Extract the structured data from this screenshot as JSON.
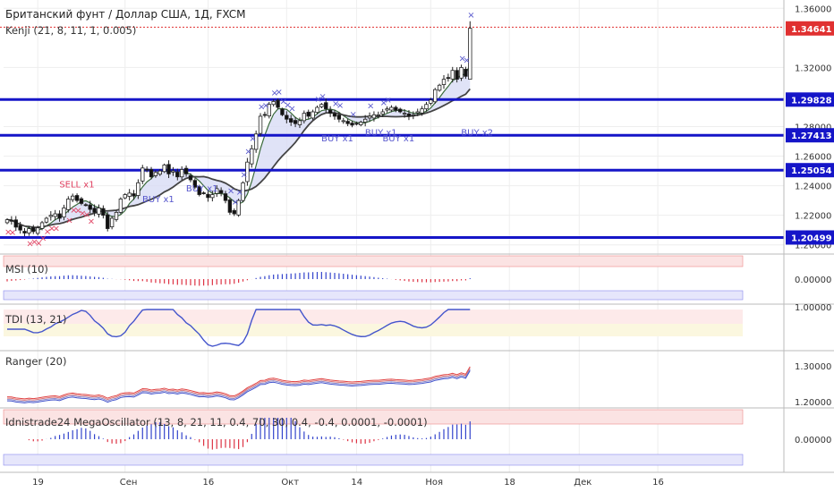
{
  "chart_data": {
    "type": "candlestick",
    "title": "Британский фунт / Доллар США, 1Д, FXCM",
    "indicator": "Kenji (21, 8, 11, 1, 0.005)",
    "colors": {
      "level": "#1515c8",
      "price_line": "#e03030",
      "sell": "#e04060",
      "buy": "#5555cc",
      "up": "#ffffff",
      "down": "#111111",
      "grid": "#eeeeee"
    },
    "x_tick_labels": [
      "19",
      "Сен",
      "16",
      "Окт",
      "14",
      "Ноя",
      "18",
      "Дек",
      "16"
    ],
    "x_tick_bars": [
      7,
      27,
      46,
      64,
      80,
      97,
      115,
      131,
      149
    ],
    "y_ticks": [
      "1.36000",
      "1.32000",
      "1.28000",
      "1.26000",
      "1.24000",
      "1.22000",
      "1.20000"
    ],
    "y_tick_values": [
      1.36,
      1.32,
      1.28,
      1.26,
      1.24,
      1.22,
      1.2
    ],
    "ylim": [
      1.195,
      1.362
    ],
    "levels": [
      {
        "value": "1.29828",
        "num": 1.29828
      },
      {
        "value": "1.27413",
        "num": 1.27413
      },
      {
        "value": "1.25054",
        "num": 1.25054
      },
      {
        "value": "1.20499",
        "num": 1.20499
      }
    ],
    "top_label": {
      "value": "1.34725",
      "num": 1.34725
    },
    "price_badge": {
      "value": "1.34641",
      "num": 1.34641
    },
    "closes": [
      1.217,
      1.2165,
      1.212,
      1.21,
      1.208,
      1.211,
      1.209,
      1.2115,
      1.215,
      1.218,
      1.22,
      1.221,
      1.218,
      1.225,
      1.231,
      1.233,
      1.23,
      1.228,
      1.227,
      1.224,
      1.222,
      1.225,
      1.22,
      1.211,
      1.218,
      1.222,
      1.231,
      1.234,
      1.235,
      1.233,
      1.242,
      1.252,
      1.251,
      1.246,
      1.249,
      1.25,
      1.254,
      1.248,
      1.25,
      1.246,
      1.251,
      1.248,
      1.244,
      1.239,
      1.234,
      1.235,
      1.232,
      1.234,
      1.238,
      1.235,
      1.23,
      1.222,
      1.221,
      1.23,
      1.242,
      1.256,
      1.265,
      1.275,
      1.287,
      1.288,
      1.295,
      1.297,
      1.293,
      1.288,
      1.285,
      1.283,
      1.282,
      1.284,
      1.289,
      1.287,
      1.29,
      1.293,
      1.295,
      1.292,
      1.289,
      1.287,
      1.285,
      1.284,
      1.282,
      1.281,
      1.282,
      1.283,
      1.285,
      1.287,
      1.288,
      1.288,
      1.29,
      1.292,
      1.293,
      1.291,
      1.29,
      1.289,
      1.287,
      1.288,
      1.29,
      1.292,
      1.295,
      1.298,
      1.305,
      1.308,
      1.312,
      1.313,
      1.318,
      1.312,
      1.32,
      1.314,
      1.3465
    ],
    "subpanels": [
      {
        "label": "MSI (10)",
        "zero": "0.00000"
      },
      {
        "label": "TDI (13, 21)",
        "zero": "1.00000"
      },
      {
        "label": "Ranger (20)",
        "ticks": [
          "1.30000",
          "1.20000"
        ]
      },
      {
        "label": "Idnistrade24 MegaOscillator (13, 8, 21, 11, 0.4, 70, 30, 0.4, -0.4, 0.0001, -0.0001)",
        "zero": "0.00000"
      }
    ],
    "signals": [
      {
        "text": "SELL x1",
        "bar": 14,
        "value": 1.239
      },
      {
        "text": "BUY x1",
        "bar": 33,
        "value": 1.229
      },
      {
        "text": "BUY x1",
        "bar": 43,
        "value": 1.236
      },
      {
        "text": "BUY x1",
        "bar": 74,
        "value": 1.27
      },
      {
        "text": "BUY x1",
        "bar": 84,
        "value": 1.274
      },
      {
        "text": "BUY x1",
        "bar": 88,
        "value": 1.27
      },
      {
        "text": "BUY x2",
        "bar": 106,
        "value": 1.274
      }
    ]
  }
}
